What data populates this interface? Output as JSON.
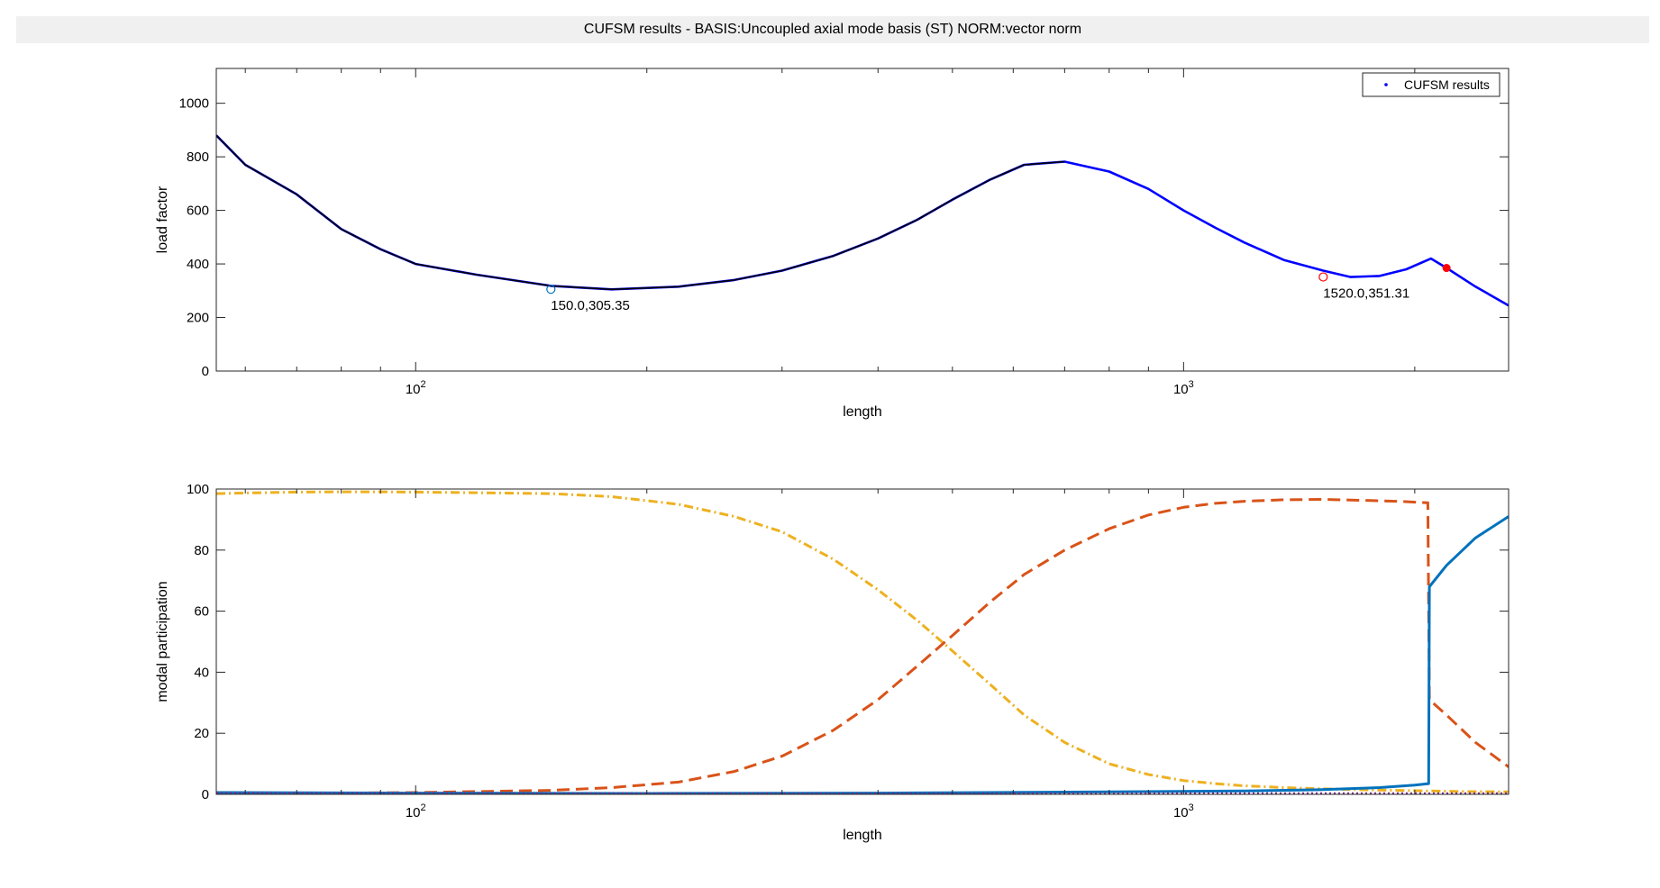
{
  "window": {
    "title": "CUFSM results -  BASIS:Uncoupled axial mode basis (ST)  NORM:vector norm"
  },
  "colors": {
    "blue": "#0000ff",
    "black": "#000000",
    "red": "#ff0000",
    "light_blue": "#0072bd",
    "orange": "#d95319",
    "yellow": "#edb120",
    "purple": "#7e2f8e",
    "axes_frame": "#262626",
    "panel": "#f0f0f0"
  },
  "chart_data": [
    {
      "type": "line",
      "xlabel": "length",
      "ylabel": "load factor",
      "xscale": "log",
      "xlim": [
        55,
        2650
      ],
      "ylim": [
        0,
        1130
      ],
      "yticks": [
        0,
        200,
        400,
        600,
        800,
        1000
      ],
      "xticks": [
        100,
        1000
      ],
      "xtick_labels": [
        {
          "base": "10",
          "exp": "2"
        },
        {
          "base": "10",
          "exp": "3"
        }
      ],
      "grid": false,
      "legend": {
        "position": "top-right",
        "entries": [
          "CUFSM results"
        ]
      },
      "series": [
        {
          "name": "CUFSM results",
          "color": "blue",
          "x": [
            55,
            60,
            70,
            80,
            90,
            100,
            120,
            150,
            180,
            220,
            260,
            300,
            350,
            400,
            450,
            500,
            560,
            620,
            700,
            800,
            900,
            1000,
            1100,
            1200,
            1350,
            1520,
            1650,
            1800,
            1950,
            2100,
            2200,
            2400,
            2650
          ],
          "y": [
            880,
            770,
            660,
            530,
            455,
            400,
            360,
            318,
            305,
            315,
            340,
            375,
            430,
            495,
            565,
            640,
            715,
            770,
            782,
            745,
            680,
            600,
            535,
            480,
            415,
            375,
            351,
            355,
            380,
            420,
            385,
            315,
            245
          ]
        },
        {
          "name": "",
          "color": "black",
          "x": [
            55,
            60,
            70,
            80,
            90,
            100,
            120,
            150,
            180,
            220,
            260,
            300,
            350,
            400,
            450,
            500,
            560,
            620,
            700
          ],
          "y": [
            880,
            770,
            660,
            530,
            455,
            400,
            360,
            318,
            305,
            315,
            340,
            375,
            430,
            495,
            565,
            640,
            715,
            770,
            782
          ]
        }
      ],
      "markers": [
        {
          "x": 150.0,
          "y": 305.35,
          "label": "150.0,305.35",
          "style": "open-circle",
          "color": "light_blue"
        },
        {
          "x": 1520.0,
          "y": 351.31,
          "label": "1520.0,351.31",
          "style": "open-circle",
          "color": "red"
        },
        {
          "x": 2200,
          "y": 385,
          "label": "",
          "style": "filled-circle",
          "color": "red"
        }
      ]
    },
    {
      "type": "line",
      "xlabel": "length",
      "ylabel": "modal participation",
      "xscale": "log",
      "xlim": [
        55,
        2650
      ],
      "ylim": [
        0,
        100
      ],
      "yticks": [
        0,
        20,
        40,
        60,
        80,
        100
      ],
      "xticks": [
        100,
        1000
      ],
      "xtick_labels": [
        {
          "base": "10",
          "exp": "2"
        },
        {
          "base": "10",
          "exp": "3"
        }
      ],
      "grid": false,
      "series": [
        {
          "name": "",
          "color": "yellow",
          "style": "dashdot",
          "x": [
            55,
            60,
            70,
            80,
            90,
            100,
            120,
            150,
            180,
            220,
            260,
            300,
            350,
            400,
            450,
            500,
            560,
            620,
            700,
            800,
            900,
            1000,
            1100,
            1200,
            1350,
            1520,
            1700,
            1900,
            2100,
            2300,
            2650
          ],
          "y": [
            98.5,
            98.7,
            99,
            99.1,
            99.1,
            99,
            98.8,
            98.5,
            97.5,
            95,
            91,
            86,
            77,
            67,
            57,
            47,
            36,
            26,
            17,
            10,
            6.5,
            4.5,
            3.5,
            2.8,
            2.2,
            1.8,
            1.5,
            1.3,
            1.1,
            0.9,
            0.8
          ]
        },
        {
          "name": "",
          "color": "orange",
          "style": "dashed",
          "x": [
            55,
            60,
            70,
            80,
            90,
            100,
            120,
            150,
            180,
            220,
            260,
            300,
            350,
            400,
            450,
            500,
            560,
            620,
            700,
            800,
            900,
            1000,
            1100,
            1200,
            1350,
            1520,
            1700,
            1900,
            2080,
            2090,
            2200,
            2400,
            2650
          ],
          "y": [
            0.2,
            0.2,
            0.3,
            0.4,
            0.5,
            0.6,
            0.9,
            1.3,
            2.2,
            4,
            7.5,
            12.5,
            21,
            31,
            42,
            52,
            63,
            72,
            80,
            87,
            91.5,
            94,
            95.3,
            96,
            96.5,
            96.6,
            96.3,
            96,
            95.5,
            31,
            26,
            17,
            9
          ]
        },
        {
          "name": "",
          "color": "light_blue",
          "style": "solid",
          "x": [
            55,
            100,
            200,
            400,
            800,
            1200,
            1500,
            1800,
            2000,
            2085,
            2090,
            2200,
            2400,
            2650
          ],
          "y": [
            0.6,
            0.4,
            0.3,
            0.4,
            0.8,
            1.1,
            1.5,
            2.2,
            3,
            3.5,
            68,
            75,
            84,
            91
          ]
        },
        {
          "name": "",
          "color": "purple",
          "style": "dotted",
          "x": [
            55,
            100,
            300,
            1000,
            2650
          ],
          "y": [
            0.4,
            0.3,
            0.2,
            0.2,
            0.2
          ]
        }
      ]
    }
  ]
}
